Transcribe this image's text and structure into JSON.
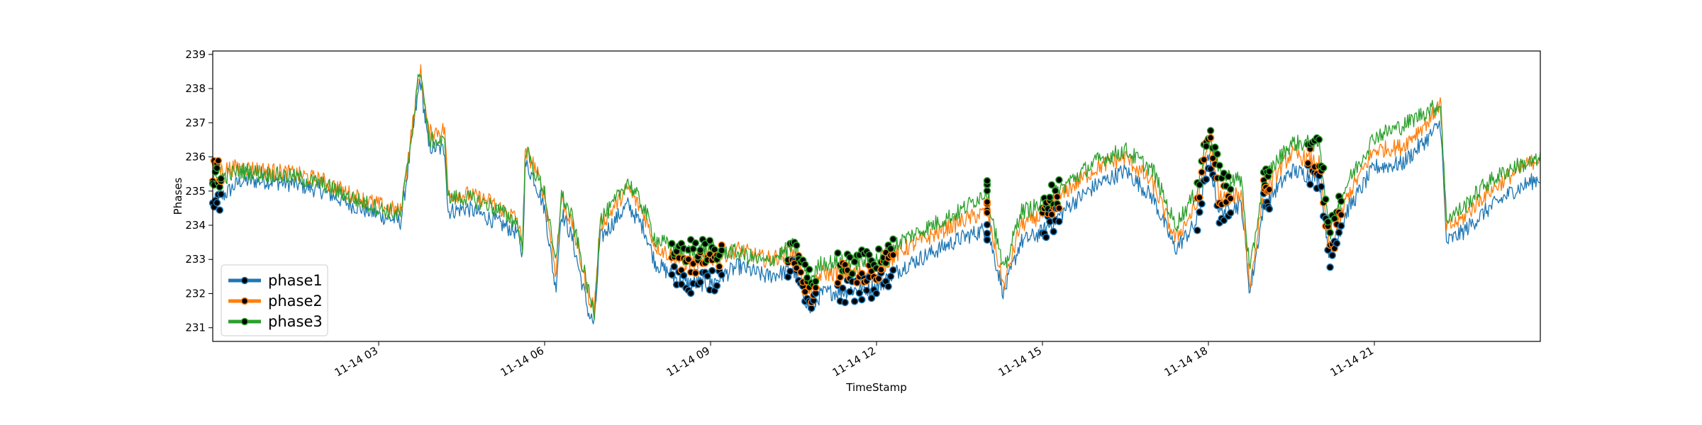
{
  "chart_data": {
    "type": "line",
    "title": "",
    "xlabel": "TimeStamp",
    "ylabel": "Phases",
    "xlim_hours": [
      0,
      24
    ],
    "ylim": [
      230.6,
      239.1
    ],
    "x_ticks": [
      {
        "hour": 3,
        "label": "11-14 03"
      },
      {
        "hour": 6,
        "label": "11-14 06"
      },
      {
        "hour": 9,
        "label": "11-14 09"
      },
      {
        "hour": 12,
        "label": "11-14 12"
      },
      {
        "hour": 15,
        "label": "11-14 15"
      },
      {
        "hour": 18,
        "label": "11-14 18"
      },
      {
        "hour": 21,
        "label": "11-14 21"
      }
    ],
    "y_ticks": [
      231,
      232,
      233,
      234,
      235,
      236,
      237,
      238,
      239
    ],
    "grid": false,
    "legend": "lower-left",
    "markers": "black dots at local anomaly points",
    "series": [
      {
        "name": "phase1",
        "color": "#1f77b4",
        "points": [
          [
            0,
            234.6
          ],
          [
            0.5,
            235.3
          ],
          [
            1,
            235.3
          ],
          [
            1.5,
            235.2
          ],
          [
            2,
            235.0
          ],
          [
            2.5,
            234.6
          ],
          [
            3,
            234.3
          ],
          [
            3.4,
            234.1
          ],
          [
            3.6,
            236.5
          ],
          [
            3.75,
            238.3
          ],
          [
            3.9,
            236.3
          ],
          [
            4.2,
            236.2
          ],
          [
            4.25,
            234.4
          ],
          [
            4.6,
            234.5
          ],
          [
            5,
            234.2
          ],
          [
            5.5,
            233.8
          ],
          [
            5.6,
            233.1
          ],
          [
            5.65,
            235.8
          ],
          [
            5.8,
            235.4
          ],
          [
            6,
            234.5
          ],
          [
            6.2,
            232.1
          ],
          [
            6.3,
            234.4
          ],
          [
            6.5,
            233.6
          ],
          [
            6.8,
            231.4
          ],
          [
            6.9,
            231.1
          ],
          [
            7,
            233.6
          ],
          [
            7.2,
            234.0
          ],
          [
            7.5,
            234.6
          ],
          [
            7.8,
            233.9
          ],
          [
            8,
            232.9
          ],
          [
            8.5,
            232.3
          ],
          [
            9,
            232.3
          ],
          [
            9.5,
            232.8
          ],
          [
            10,
            232.5
          ],
          [
            10.5,
            232.7
          ],
          [
            10.8,
            231.5
          ],
          [
            11,
            232.0
          ],
          [
            11.5,
            232.1
          ],
          [
            12,
            232.2
          ],
          [
            12.5,
            232.8
          ],
          [
            13,
            233.2
          ],
          [
            13.5,
            233.6
          ],
          [
            14,
            233.9
          ],
          [
            14.3,
            232.0
          ],
          [
            14.6,
            233.5
          ],
          [
            15,
            233.8
          ],
          [
            15.5,
            234.6
          ],
          [
            16,
            235.2
          ],
          [
            16.5,
            235.6
          ],
          [
            17,
            234.8
          ],
          [
            17.4,
            233.3
          ],
          [
            17.8,
            234.1
          ],
          [
            18,
            236.0
          ],
          [
            18.2,
            234.4
          ],
          [
            18.6,
            234.6
          ],
          [
            18.75,
            232.0
          ],
          [
            19,
            234.6
          ],
          [
            19.5,
            235.6
          ],
          [
            20,
            235.4
          ],
          [
            20.2,
            233.0
          ],
          [
            20.5,
            234.4
          ],
          [
            21,
            235.7
          ],
          [
            21.5,
            235.8
          ],
          [
            22,
            236.6
          ],
          [
            22.2,
            237.0
          ],
          [
            22.3,
            233.5
          ],
          [
            22.6,
            233.8
          ],
          [
            23,
            234.4
          ],
          [
            23.5,
            235.0
          ],
          [
            24,
            235.4
          ]
        ]
      },
      {
        "name": "phase2",
        "color": "#ff7f0e",
        "points": [
          [
            0,
            235.6
          ],
          [
            0.5,
            235.7
          ],
          [
            1,
            235.6
          ],
          [
            1.5,
            235.5
          ],
          [
            2,
            235.3
          ],
          [
            2.5,
            234.9
          ],
          [
            3,
            234.6
          ],
          [
            3.4,
            234.4
          ],
          [
            3.6,
            236.8
          ],
          [
            3.75,
            238.6
          ],
          [
            3.9,
            236.7
          ],
          [
            4.2,
            236.8
          ],
          [
            4.25,
            234.9
          ],
          [
            4.6,
            234.9
          ],
          [
            5,
            234.7
          ],
          [
            5.5,
            234.2
          ],
          [
            5.6,
            233.4
          ],
          [
            5.65,
            236.1
          ],
          [
            5.8,
            235.8
          ],
          [
            6,
            234.9
          ],
          [
            6.2,
            232.6
          ],
          [
            6.3,
            234.8
          ],
          [
            6.5,
            234.0
          ],
          [
            6.8,
            231.9
          ],
          [
            6.9,
            231.6
          ],
          [
            7,
            234.0
          ],
          [
            7.2,
            234.4
          ],
          [
            7.5,
            235.1
          ],
          [
            7.8,
            234.3
          ],
          [
            8,
            233.4
          ],
          [
            8.5,
            232.9
          ],
          [
            9,
            233.0
          ],
          [
            9.5,
            233.3
          ],
          [
            10,
            233.0
          ],
          [
            10.5,
            233.2
          ],
          [
            10.8,
            232.0
          ],
          [
            11,
            232.6
          ],
          [
            11.5,
            232.6
          ],
          [
            12,
            232.7
          ],
          [
            12.5,
            233.3
          ],
          [
            13,
            233.7
          ],
          [
            13.5,
            234.1
          ],
          [
            14,
            234.4
          ],
          [
            14.3,
            232.2
          ],
          [
            14.6,
            234.0
          ],
          [
            15,
            234.3
          ],
          [
            15.5,
            235.1
          ],
          [
            16,
            235.7
          ],
          [
            16.5,
            236.0
          ],
          [
            17,
            235.2
          ],
          [
            17.4,
            233.6
          ],
          [
            17.8,
            234.6
          ],
          [
            18,
            236.6
          ],
          [
            18.2,
            234.8
          ],
          [
            18.6,
            234.9
          ],
          [
            18.75,
            232.2
          ],
          [
            19,
            235.0
          ],
          [
            19.5,
            236.1
          ],
          [
            20,
            235.8
          ],
          [
            20.2,
            233.2
          ],
          [
            20.5,
            234.8
          ],
          [
            21,
            236.2
          ],
          [
            21.5,
            236.3
          ],
          [
            22,
            237.1
          ],
          [
            22.2,
            237.6
          ],
          [
            22.3,
            233.9
          ],
          [
            22.6,
            234.2
          ],
          [
            23,
            234.9
          ],
          [
            23.5,
            235.5
          ],
          [
            24,
            236.0
          ]
        ]
      },
      {
        "name": "phase3",
        "color": "#2ca02c",
        "points": [
          [
            0,
            235.3
          ],
          [
            0.5,
            235.6
          ],
          [
            1,
            235.5
          ],
          [
            1.5,
            235.4
          ],
          [
            2,
            235.2
          ],
          [
            2.5,
            234.8
          ],
          [
            3,
            234.5
          ],
          [
            3.4,
            234.3
          ],
          [
            3.6,
            236.7
          ],
          [
            3.75,
            238.7
          ],
          [
            3.9,
            236.5
          ],
          [
            4.2,
            236.4
          ],
          [
            4.25,
            234.8
          ],
          [
            4.6,
            234.8
          ],
          [
            5,
            234.6
          ],
          [
            5.5,
            234.1
          ],
          [
            5.6,
            233.3
          ],
          [
            5.65,
            236.3
          ],
          [
            5.8,
            235.6
          ],
          [
            6,
            235.0
          ],
          [
            6.2,
            232.8
          ],
          [
            6.3,
            234.9
          ],
          [
            6.5,
            234.2
          ],
          [
            6.8,
            232.0
          ],
          [
            6.9,
            231.4
          ],
          [
            7,
            234.2
          ],
          [
            7.2,
            234.5
          ],
          [
            7.5,
            235.3
          ],
          [
            7.8,
            234.5
          ],
          [
            8,
            233.6
          ],
          [
            8.5,
            233.2
          ],
          [
            9,
            233.3
          ],
          [
            9.5,
            233.2
          ],
          [
            10,
            232.9
          ],
          [
            10.5,
            233.4
          ],
          [
            10.8,
            232.4
          ],
          [
            11,
            232.9
          ],
          [
            11.5,
            232.9
          ],
          [
            12,
            233.0
          ],
          [
            12.5,
            233.6
          ],
          [
            13,
            234.0
          ],
          [
            13.5,
            234.4
          ],
          [
            14,
            235.0
          ],
          [
            14.3,
            232.6
          ],
          [
            14.6,
            234.4
          ],
          [
            15,
            234.6
          ],
          [
            15.5,
            235.3
          ],
          [
            16,
            235.9
          ],
          [
            16.5,
            236.2
          ],
          [
            17,
            235.6
          ],
          [
            17.4,
            234.0
          ],
          [
            17.8,
            235.0
          ],
          [
            18,
            236.8
          ],
          [
            18.2,
            235.5
          ],
          [
            18.6,
            235.3
          ],
          [
            18.75,
            232.6
          ],
          [
            19,
            235.4
          ],
          [
            19.5,
            236.4
          ],
          [
            20,
            236.4
          ],
          [
            20.2,
            233.8
          ],
          [
            20.5,
            235.2
          ],
          [
            21,
            236.6
          ],
          [
            21.5,
            236.9
          ],
          [
            22,
            237.4
          ],
          [
            22.2,
            237.5
          ],
          [
            22.3,
            234.2
          ],
          [
            22.6,
            234.5
          ],
          [
            23,
            235.2
          ],
          [
            23.5,
            235.7
          ],
          [
            24,
            235.9
          ]
        ]
      }
    ],
    "marker_clusters": [
      {
        "x_from": 0.0,
        "x_to": 0.15
      },
      {
        "x_from": 8.3,
        "x_to": 9.2
      },
      {
        "x_from": 10.4,
        "x_to": 10.9
      },
      {
        "x_from": 11.3,
        "x_to": 12.3
      },
      {
        "x_from": 14.0,
        "x_to": 14.0
      },
      {
        "x_from": 15.0,
        "x_to": 15.3
      },
      {
        "x_from": 17.8,
        "x_to": 18.4
      },
      {
        "x_from": 19.0,
        "x_to": 19.1
      },
      {
        "x_from": 19.8,
        "x_to": 20.4
      }
    ]
  }
}
